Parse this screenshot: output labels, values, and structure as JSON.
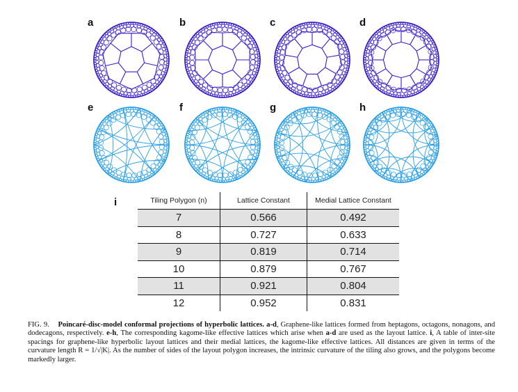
{
  "panels": {
    "labels": [
      "a",
      "b",
      "c",
      "d",
      "e",
      "f",
      "g",
      "h"
    ],
    "top_color": "#3a1fcc",
    "bottom_color": "#2a9fe8",
    "polygon_sides": [
      7,
      8,
      9,
      12
    ]
  },
  "table": {
    "label": "i",
    "headers": [
      "Tiling Polygon (n)",
      "Lattice Constant",
      "Medial Lattice Constant"
    ],
    "rows": [
      [
        "7",
        "0.566",
        "0.492"
      ],
      [
        "8",
        "0.727",
        "0.633"
      ],
      [
        "9",
        "0.819",
        "0.714"
      ],
      [
        "10",
        "0.879",
        "0.767"
      ],
      [
        "11",
        "0.921",
        "0.804"
      ],
      [
        "12",
        "0.952",
        "0.831"
      ]
    ]
  },
  "caption": {
    "fig": "FIG. 9.",
    "title": "Poincaré-disc-model conformal projections of hyperbolic lattices.",
    "ad": "a-d",
    "s1": ", Graphene-like lattices formed from heptagons, octagons, nonagons, and dodecagons, respectively.",
    "eh": "e-h",
    "s2": ", The corresponding kagome-like effective lattices which arise when",
    "ad2": "a-d",
    "s3": "are used as the layout lattice.",
    "i": "i",
    "s4": ", A table of inter-site spacings for graphene-like hyperbolic layout lattices and their medial lattices, the kagome-like effective lattices. All distances are given in terms of the curvature length R = 1/√|K|. As the number of sides of the layout polygon increases, the intrinsic curvature of the tiling also grows, and the polygons become markedly larger."
  }
}
